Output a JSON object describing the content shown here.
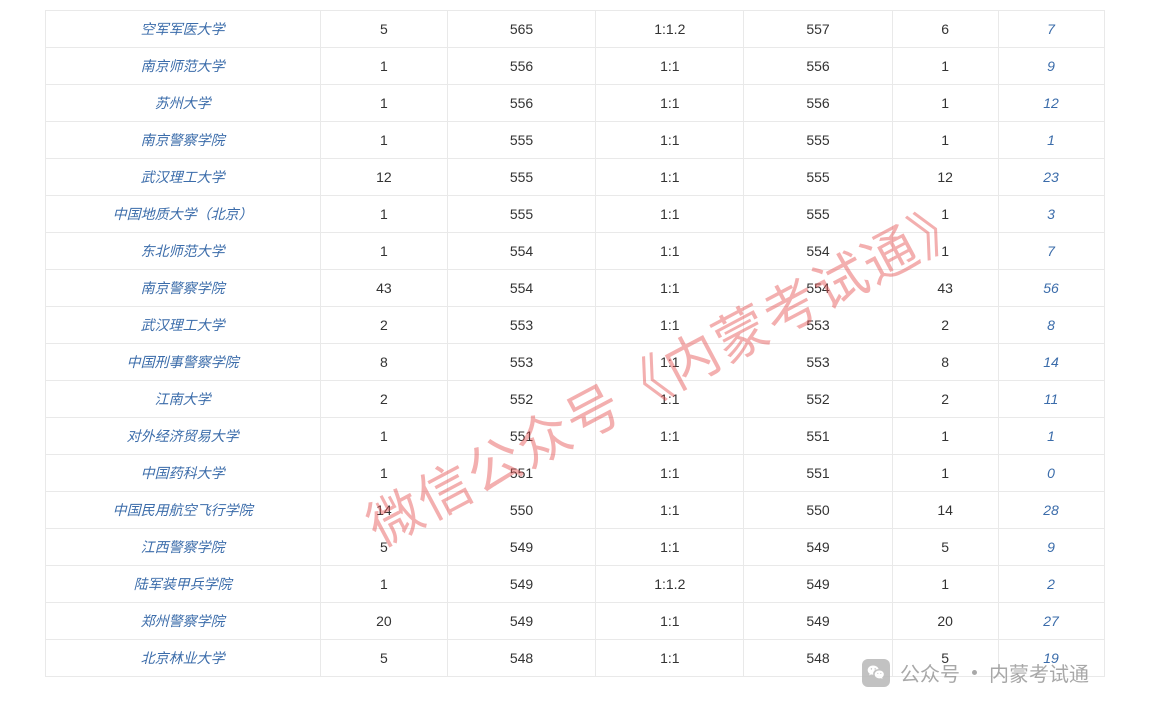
{
  "table": {
    "col_widths_pct": [
      26,
      12,
      14,
      14,
      14,
      10,
      10
    ],
    "link_color": "#3b6caa",
    "text_color": "#333333",
    "border_color": "#e9e9e9",
    "rows": [
      {
        "name": "空军军医大学",
        "c2": "5",
        "c3": "565",
        "c4": "1:1.2",
        "c5": "557",
        "c6": "6",
        "c7": "7"
      },
      {
        "name": "南京师范大学",
        "c2": "1",
        "c3": "556",
        "c4": "1:1",
        "c5": "556",
        "c6": "1",
        "c7": "9"
      },
      {
        "name": "苏州大学",
        "c2": "1",
        "c3": "556",
        "c4": "1:1",
        "c5": "556",
        "c6": "1",
        "c7": "12"
      },
      {
        "name": "南京警察学院",
        "c2": "1",
        "c3": "555",
        "c4": "1:1",
        "c5": "555",
        "c6": "1",
        "c7": "1"
      },
      {
        "name": "武汉理工大学",
        "c2": "12",
        "c3": "555",
        "c4": "1:1",
        "c5": "555",
        "c6": "12",
        "c7": "23"
      },
      {
        "name": "中国地质大学（北京）",
        "c2": "1",
        "c3": "555",
        "c4": "1:1",
        "c5": "555",
        "c6": "1",
        "c7": "3"
      },
      {
        "name": "东北师范大学",
        "c2": "1",
        "c3": "554",
        "c4": "1:1",
        "c5": "554",
        "c6": "1",
        "c7": "7"
      },
      {
        "name": "南京警察学院",
        "c2": "43",
        "c3": "554",
        "c4": "1:1",
        "c5": "554",
        "c6": "43",
        "c7": "56"
      },
      {
        "name": "武汉理工大学",
        "c2": "2",
        "c3": "553",
        "c4": "1:1",
        "c5": "553",
        "c6": "2",
        "c7": "8"
      },
      {
        "name": "中国刑事警察学院",
        "c2": "8",
        "c3": "553",
        "c4": "1:1",
        "c5": "553",
        "c6": "8",
        "c7": "14"
      },
      {
        "name": "江南大学",
        "c2": "2",
        "c3": "552",
        "c4": "1:1",
        "c5": "552",
        "c6": "2",
        "c7": "11"
      },
      {
        "name": "对外经济贸易大学",
        "c2": "1",
        "c3": "551",
        "c4": "1:1",
        "c5": "551",
        "c6": "1",
        "c7": "1"
      },
      {
        "name": "中国药科大学",
        "c2": "1",
        "c3": "551",
        "c4": "1:1",
        "c5": "551",
        "c6": "1",
        "c7": "0"
      },
      {
        "name": "中国民用航空飞行学院",
        "c2": "14",
        "c3": "550",
        "c4": "1:1",
        "c5": "550",
        "c6": "14",
        "c7": "28"
      },
      {
        "name": "江西警察学院",
        "c2": "5",
        "c3": "549",
        "c4": "1:1",
        "c5": "549",
        "c6": "5",
        "c7": "9"
      },
      {
        "name": "陆军装甲兵学院",
        "c2": "1",
        "c3": "549",
        "c4": "1:1.2",
        "c5": "549",
        "c6": "1",
        "c7": "2"
      },
      {
        "name": "郑州警察学院",
        "c2": "20",
        "c3": "549",
        "c4": "1:1",
        "c5": "549",
        "c6": "20",
        "c7": "27"
      },
      {
        "name": "北京林业大学",
        "c2": "5",
        "c3": "548",
        "c4": "1:1",
        "c5": "548",
        "c6": "5",
        "c7": "19"
      }
    ]
  },
  "watermark_diag": "微信公众号《内蒙考试通》",
  "watermark_badge": {
    "prefix": "公众号",
    "name": "内蒙考试通"
  }
}
